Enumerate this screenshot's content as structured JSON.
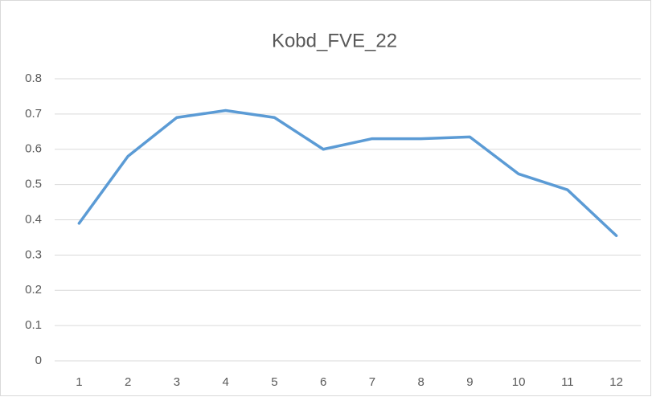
{
  "chart_data": {
    "type": "line",
    "title": "Kobd_FVE_22",
    "categories": [
      "1",
      "2",
      "3",
      "4",
      "5",
      "6",
      "7",
      "8",
      "9",
      "10",
      "11",
      "12"
    ],
    "values": [
      0.39,
      0.58,
      0.69,
      0.71,
      0.69,
      0.6,
      0.63,
      0.63,
      0.635,
      0.53,
      0.485,
      0.355
    ],
    "color": "#5b9bd5",
    "ylim": [
      0,
      0.8
    ],
    "yticks": [
      0,
      0.1,
      0.2,
      0.3,
      0.4,
      0.5,
      0.6,
      0.7,
      0.8
    ],
    "grid": true
  }
}
